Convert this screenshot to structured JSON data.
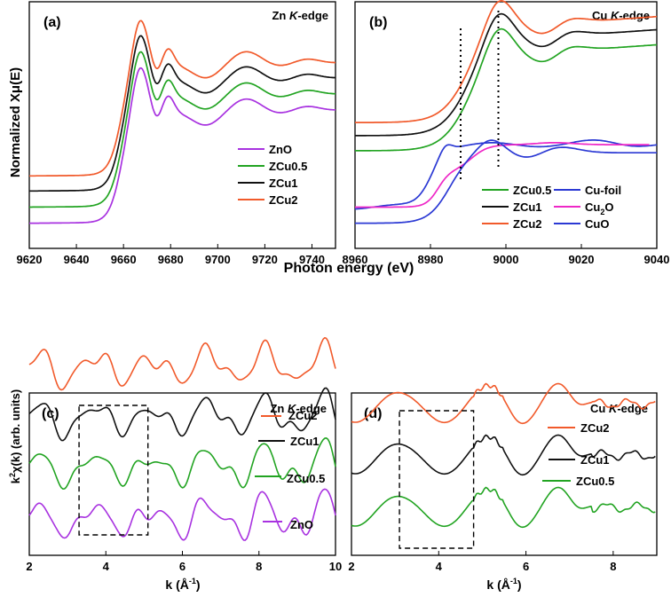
{
  "figure": {
    "top_xlabel": "Photon energy (eV)",
    "top_ylabel": "Normalized Xμ(E)",
    "bottom_ylabel": "k²χ(k) (arb. units)",
    "bottom_xlabel": "k (Å⁻¹)"
  },
  "colors": {
    "orange": "#f15a2b",
    "black": "#111111",
    "green": "#22a422",
    "purple": "#a832e0",
    "blue": "#2b39d4",
    "magenta": "#ee28c7"
  },
  "chart_data": [
    {
      "id": "a",
      "type": "line",
      "panel_label": "(a)",
      "title": "Zn K-edge",
      "title_plain": "Zn ",
      "title_italic": "K",
      "title_tail": "-edge",
      "xlabel": "Photon energy (eV)",
      "ylabel": "Normalized Xμ(E)",
      "xlim": [
        9620,
        9750
      ],
      "ylim": [
        -0.25,
        2.2
      ],
      "xticks": [
        9620,
        9640,
        9660,
        9680,
        9700,
        9720,
        9740
      ],
      "legend_position": "bottom-right",
      "edge": {
        "e0": 9658,
        "width": 3.2,
        "white_line": 9667
      },
      "series": [
        {
          "name": "ZnO",
          "color": "purple",
          "offset": 0.0
        },
        {
          "name": "ZCu0.5",
          "color": "green",
          "offset": 0.16
        },
        {
          "name": "ZCu1",
          "color": "black",
          "offset": 0.32
        },
        {
          "name": "ZCu2",
          "color": "orange",
          "offset": 0.47
        }
      ]
    },
    {
      "id": "b",
      "type": "line",
      "panel_label": "(b)",
      "title": "Cu K-edge",
      "title_plain": "Cu ",
      "title_italic": "K",
      "title_tail": "-edge",
      "xlim": [
        8960,
        9040
      ],
      "ylim": [
        -0.25,
        2.2
      ],
      "xticks": [
        8960,
        8980,
        9000,
        9020,
        9040
      ],
      "reference_lines_x": [
        8988,
        8998
      ],
      "legend_position": "bottom",
      "series": [
        {
          "name": "ZCu0.5",
          "color": "green",
          "offset": 0.72,
          "group": "sample"
        },
        {
          "name": "ZCu1",
          "color": "black",
          "offset": 0.87,
          "group": "sample"
        },
        {
          "name": "ZCu2",
          "color": "orange",
          "offset": 1.0,
          "group": "sample"
        },
        {
          "name": "Cu-foil",
          "color": "blue",
          "offset": 0.16,
          "group": "reference"
        },
        {
          "name": "Cu2O",
          "label_main": "Cu",
          "label_sub": "2",
          "label_tail": "O",
          "color": "magenta",
          "offset": 0.16,
          "group": "reference"
        },
        {
          "name": "CuO",
          "color": "blue",
          "offset": 0.0,
          "group": "reference"
        }
      ]
    },
    {
      "id": "c",
      "type": "line",
      "panel_label": "(c)",
      "title": "Zn K-edge",
      "title_plain": "Zn ",
      "title_italic": "K",
      "title_tail": "-edge",
      "xlabel": "k (Å⁻¹)",
      "ylabel": "k²χ(k) (arb. units)",
      "xlim": [
        2,
        10
      ],
      "xticks": [
        2,
        4,
        6,
        8,
        10
      ],
      "highlight_box_x": [
        3.3,
        5.1
      ],
      "series": [
        {
          "name": "ZnO",
          "color": "purple",
          "offset": 0
        },
        {
          "name": "ZCu0.5",
          "color": "green",
          "offset": 1
        },
        {
          "name": "ZCu1",
          "color": "black",
          "offset": 2
        },
        {
          "name": "ZCu2",
          "color": "orange",
          "offset": 3
        }
      ]
    },
    {
      "id": "d",
      "type": "line",
      "panel_label": "(d)",
      "title": "Cu K-edge",
      "title_plain": "Cu ",
      "title_italic": "K",
      "title_tail": "-edge",
      "xlabel": "k (Å⁻¹)",
      "xlim": [
        2,
        9
      ],
      "xticks": [
        2,
        4,
        6,
        8
      ],
      "highlight_box_x": [
        3.1,
        4.8
      ],
      "series": [
        {
          "name": "ZCu0.5",
          "color": "green",
          "offset": 0
        },
        {
          "name": "ZCu1",
          "color": "black",
          "offset": 1
        },
        {
          "name": "ZCu2",
          "color": "orange",
          "offset": 2
        }
      ]
    }
  ]
}
